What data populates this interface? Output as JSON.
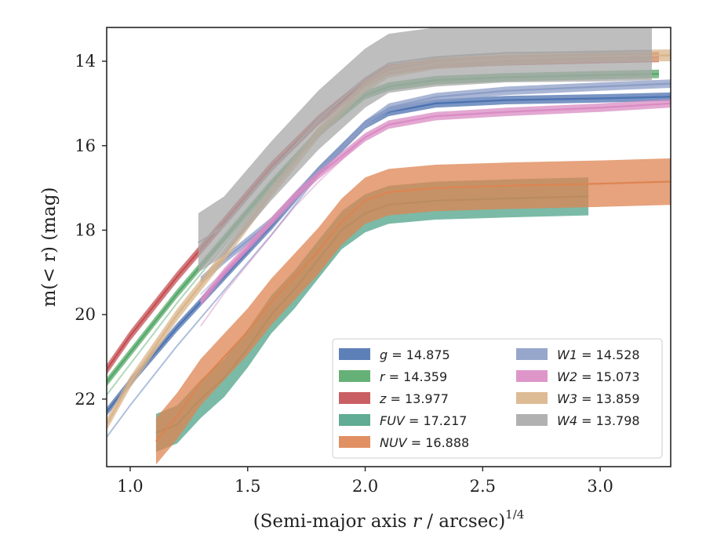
{
  "chart_data": {
    "type": "line",
    "title": "",
    "xlabel": "(Semi-major axis r / arcsec)",
    "xlabel_exponent": "1/4",
    "ylabel": "m(< r) (mag)",
    "xlim": [
      0.9,
      3.3
    ],
    "ylim": [
      23.6,
      13.2
    ],
    "y_inverted": true,
    "x_ticks": [
      "1.0",
      "1.5",
      "2.0",
      "2.5",
      "3.0"
    ],
    "y_ticks": [
      "14",
      "16",
      "18",
      "20",
      "22"
    ],
    "grid": false,
    "legend_position": "lower-right",
    "legend_columns": 2,
    "series": [
      {
        "name": "g",
        "legend_label": "g = 14.875",
        "color": "#4c72b0",
        "band": 0.1,
        "faint_offset": 0.6,
        "x": [
          0.9,
          1.0,
          1.2,
          1.4,
          1.6,
          1.8,
          2.0,
          2.1,
          2.3,
          2.6,
          3.0,
          3.3
        ],
        "y": [
          22.3,
          21.6,
          20.3,
          19.1,
          17.9,
          16.6,
          15.5,
          15.2,
          15.0,
          14.92,
          14.88,
          14.84
        ]
      },
      {
        "name": "r",
        "legend_label": "r = 14.359",
        "color": "#55a868",
        "band": 0.1,
        "faint_offset": 0.3,
        "x": [
          0.9,
          1.0,
          1.2,
          1.4,
          1.6,
          1.8,
          2.0,
          2.1,
          2.3,
          2.6,
          3.0,
          3.25
        ],
        "y": [
          21.6,
          20.9,
          19.5,
          18.2,
          16.9,
          15.7,
          14.8,
          14.6,
          14.45,
          14.38,
          14.33,
          14.3
        ]
      },
      {
        "name": "z",
        "legend_label": "z = 13.977",
        "color": "#c44e52",
        "band": 0.12,
        "faint_offset": 0.0,
        "x": [
          0.9,
          1.0,
          1.2,
          1.4,
          1.6,
          1.8,
          2.0,
          2.1,
          2.3,
          2.6,
          3.0,
          3.25
        ],
        "y": [
          21.3,
          20.5,
          19.1,
          17.8,
          16.5,
          15.4,
          14.5,
          14.2,
          14.05,
          13.98,
          13.93,
          13.9
        ]
      },
      {
        "name": "FUV",
        "legend_label": "FUV = 17.217",
        "color": "#4fa38a",
        "band": 0.45,
        "faint_offset": 0.0,
        "x": [
          1.11,
          1.2,
          1.3,
          1.4,
          1.5,
          1.6,
          1.7,
          1.8,
          1.9,
          2.0,
          2.1,
          2.3,
          2.6,
          2.95
        ],
        "y": [
          22.8,
          22.6,
          22.0,
          21.5,
          20.8,
          20.0,
          19.4,
          18.7,
          18.0,
          17.6,
          17.4,
          17.3,
          17.25,
          17.2
        ]
      },
      {
        "name": "NUV",
        "legend_label": "NUV = 16.888",
        "color": "#dd8452",
        "band": 0.55,
        "faint_offset": 0.0,
        "x": [
          1.11,
          1.2,
          1.3,
          1.4,
          1.5,
          1.6,
          1.7,
          1.8,
          1.9,
          2.0,
          2.1,
          2.3,
          2.6,
          3.0,
          3.3
        ],
        "y": [
          23.0,
          22.4,
          21.6,
          21.0,
          20.4,
          19.7,
          19.1,
          18.5,
          17.8,
          17.3,
          17.1,
          17.0,
          16.95,
          16.9,
          16.85
        ]
      },
      {
        "name": "W1",
        "legend_label": "W1 = 14.528",
        "color": "#8c9dc7",
        "band": 0.1,
        "faint_offset": 0.5,
        "x": [
          1.3,
          1.4,
          1.6,
          1.8,
          2.0,
          2.1,
          2.3,
          2.6,
          3.0,
          3.3
        ],
        "y": [
          19.2,
          18.7,
          17.8,
          16.6,
          15.5,
          15.1,
          14.85,
          14.7,
          14.6,
          14.53
        ]
      },
      {
        "name": "W2",
        "legend_label": "W2 = 15.073",
        "color": "#da8bc3",
        "band": 0.1,
        "faint_offset": 0.9,
        "x": [
          1.3,
          1.4,
          1.5,
          1.6,
          1.7,
          1.8,
          2.0,
          2.1,
          2.3,
          2.6,
          3.0,
          3.3
        ],
        "y": [
          19.7,
          19.0,
          18.4,
          17.8,
          17.2,
          16.7,
          15.8,
          15.5,
          15.3,
          15.2,
          15.1,
          15.0
        ]
      },
      {
        "name": "W3",
        "legend_label": "W3 = 13.859",
        "color": "#d9b48a",
        "band": 0.14,
        "faint_offset": 0.0,
        "x": [
          0.9,
          1.0,
          1.2,
          1.4,
          1.6,
          1.8,
          2.0,
          2.1,
          2.3,
          2.6,
          3.0,
          3.3
        ],
        "y": [
          22.6,
          21.6,
          20.0,
          18.6,
          17.1,
          15.7,
          14.6,
          14.25,
          14.05,
          13.95,
          13.88,
          13.86
        ]
      },
      {
        "name": "W4",
        "legend_label": "W4 = 13.798",
        "color": "#a8a8a8",
        "band": 0.7,
        "faint_offset": 0.0,
        "x": [
          1.29,
          1.4,
          1.6,
          1.8,
          2.0,
          2.1,
          2.3,
          2.6,
          3.0,
          3.22
        ],
        "y": [
          18.3,
          17.9,
          16.6,
          15.4,
          14.4,
          14.05,
          13.9,
          13.8,
          13.78,
          13.75
        ]
      }
    ]
  }
}
